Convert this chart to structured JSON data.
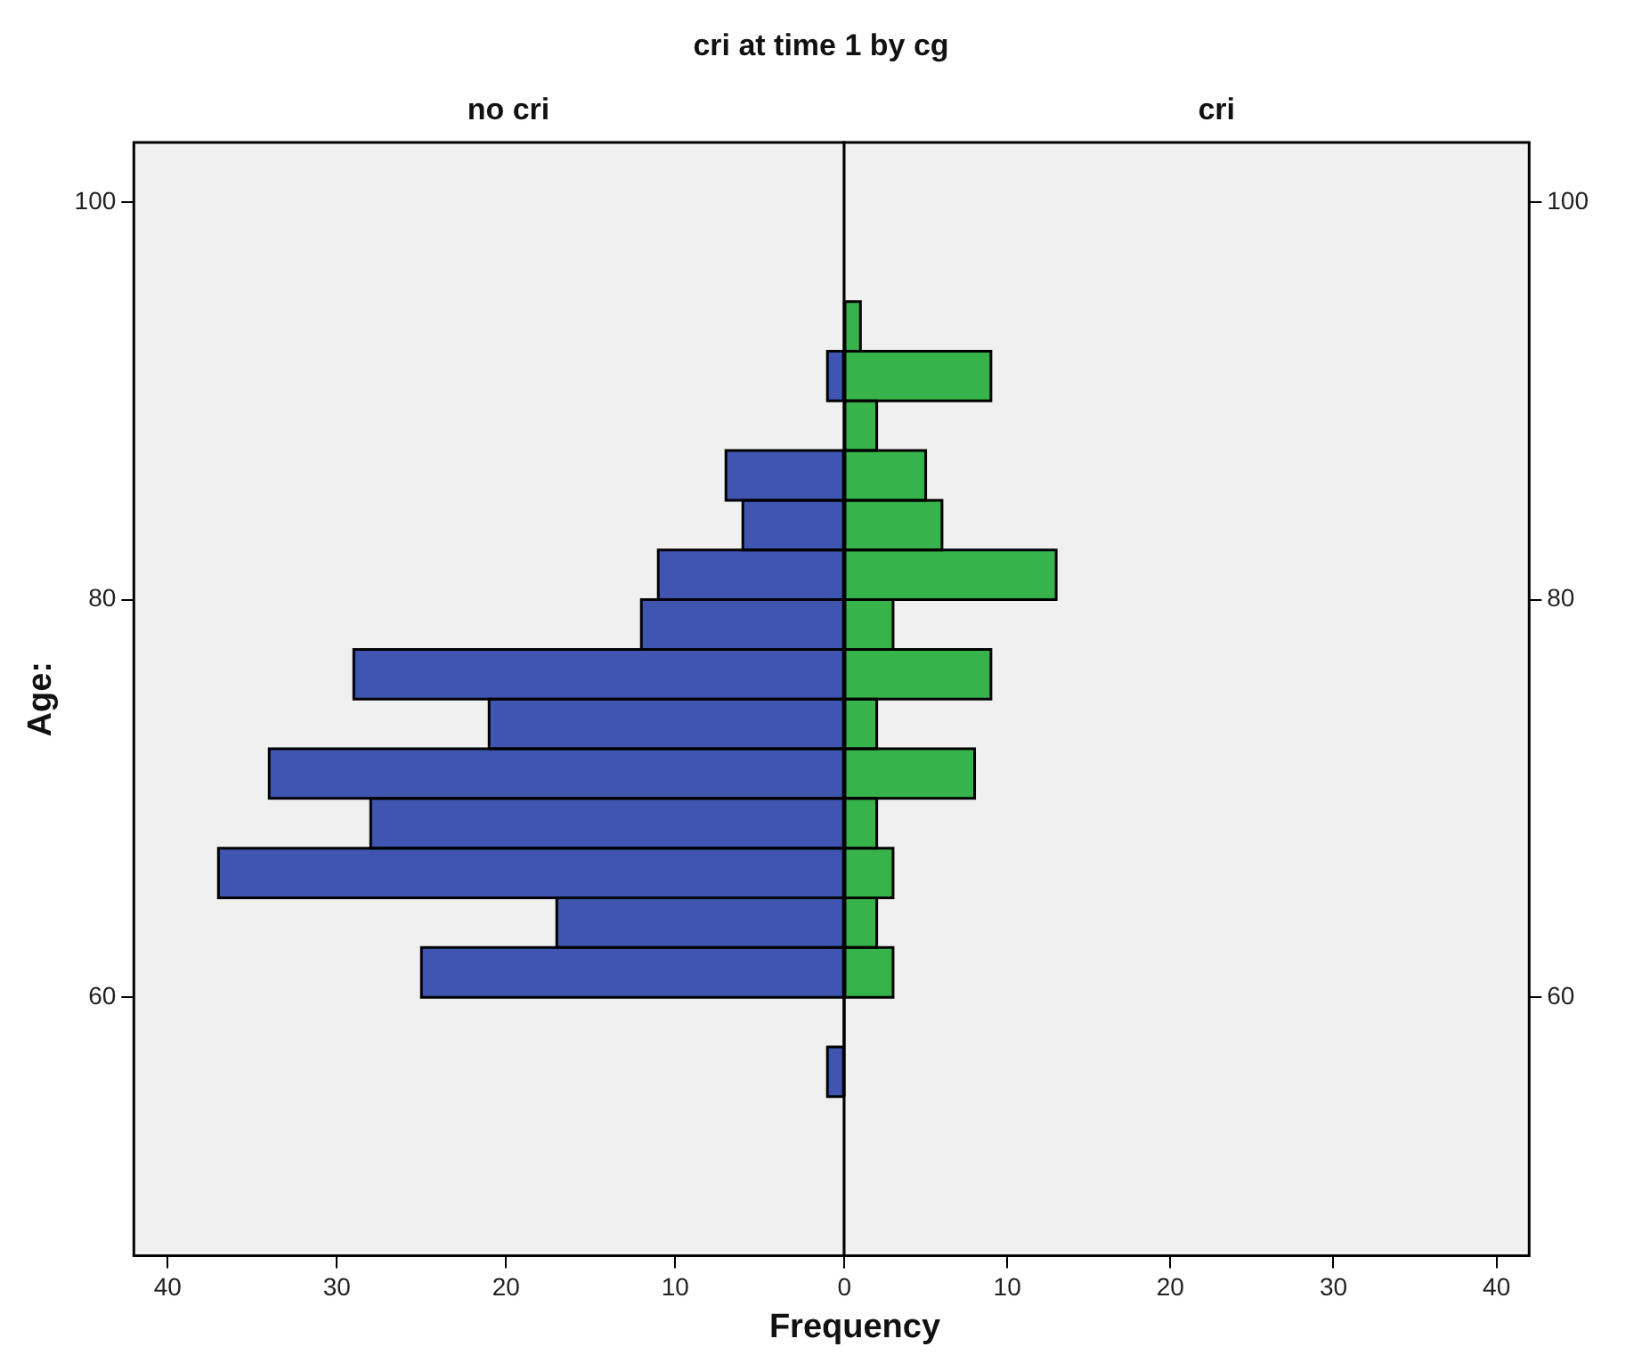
{
  "chart_data": [
    {
      "type": "histogram",
      "orientation": "horizontal",
      "title": "cri at time 1 by cg",
      "subtitle": "no cri",
      "xlabel": "Frequency",
      "ylabel": "Age:",
      "bins": [
        55,
        57.5,
        60,
        62.5,
        65,
        67.5,
        70,
        72.5,
        75,
        77.5,
        80,
        82.5,
        85,
        87.5,
        90,
        92.5,
        95
      ],
      "values": [
        1,
        0,
        25,
        17,
        37,
        28,
        34,
        21,
        29,
        12,
        11,
        6,
        7,
        0,
        1,
        0
      ],
      "color": "#3f55b0",
      "xlim": [
        42,
        0
      ],
      "xticks": [
        40,
        30,
        20,
        10,
        0
      ],
      "ylim": [
        47,
        103
      ],
      "yticks": [
        60,
        80,
        100
      ],
      "grid": false,
      "legend": false
    },
    {
      "type": "histogram",
      "orientation": "horizontal",
      "subtitle": "cri",
      "bins": [
        55,
        57.5,
        60,
        62.5,
        65,
        67.5,
        70,
        72.5,
        75,
        77.5,
        80,
        82.5,
        85,
        87.5,
        90,
        92.5,
        95
      ],
      "values": [
        0,
        0,
        3,
        2,
        3,
        2,
        8,
        2,
        9,
        3,
        13,
        6,
        5,
        2,
        9,
        1
      ],
      "color": "#36b34a",
      "xlim": [
        0,
        42
      ],
      "xticks": [
        {
          "value": 0,
          "label": null
        },
        10,
        20,
        30,
        40
      ],
      "ylim": [
        47,
        103
      ],
      "yticks": [
        60,
        80,
        100
      ],
      "grid": false,
      "legend": false
    }
  ]
}
